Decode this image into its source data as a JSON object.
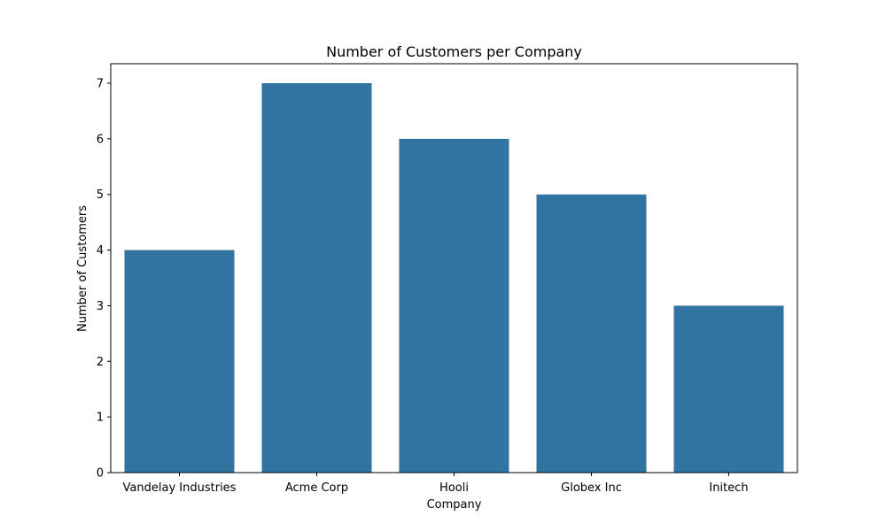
{
  "chart_data": {
    "type": "bar",
    "title": "Number of Customers per Company",
    "xlabel": "Company",
    "ylabel": "Number of Customers",
    "categories": [
      "Vandelay Industries",
      "Acme Corp",
      "Hooli",
      "Globex Inc",
      "Initech"
    ],
    "values": [
      4,
      7,
      6,
      5,
      3
    ],
    "ylim": [
      0,
      7.35
    ],
    "yticks": [
      0,
      1,
      2,
      3,
      4,
      5,
      6,
      7
    ],
    "grid": false,
    "legend": "none",
    "colors": {
      "bar": "#3274a1",
      "axis": "#000000",
      "background": "#ffffff"
    }
  }
}
